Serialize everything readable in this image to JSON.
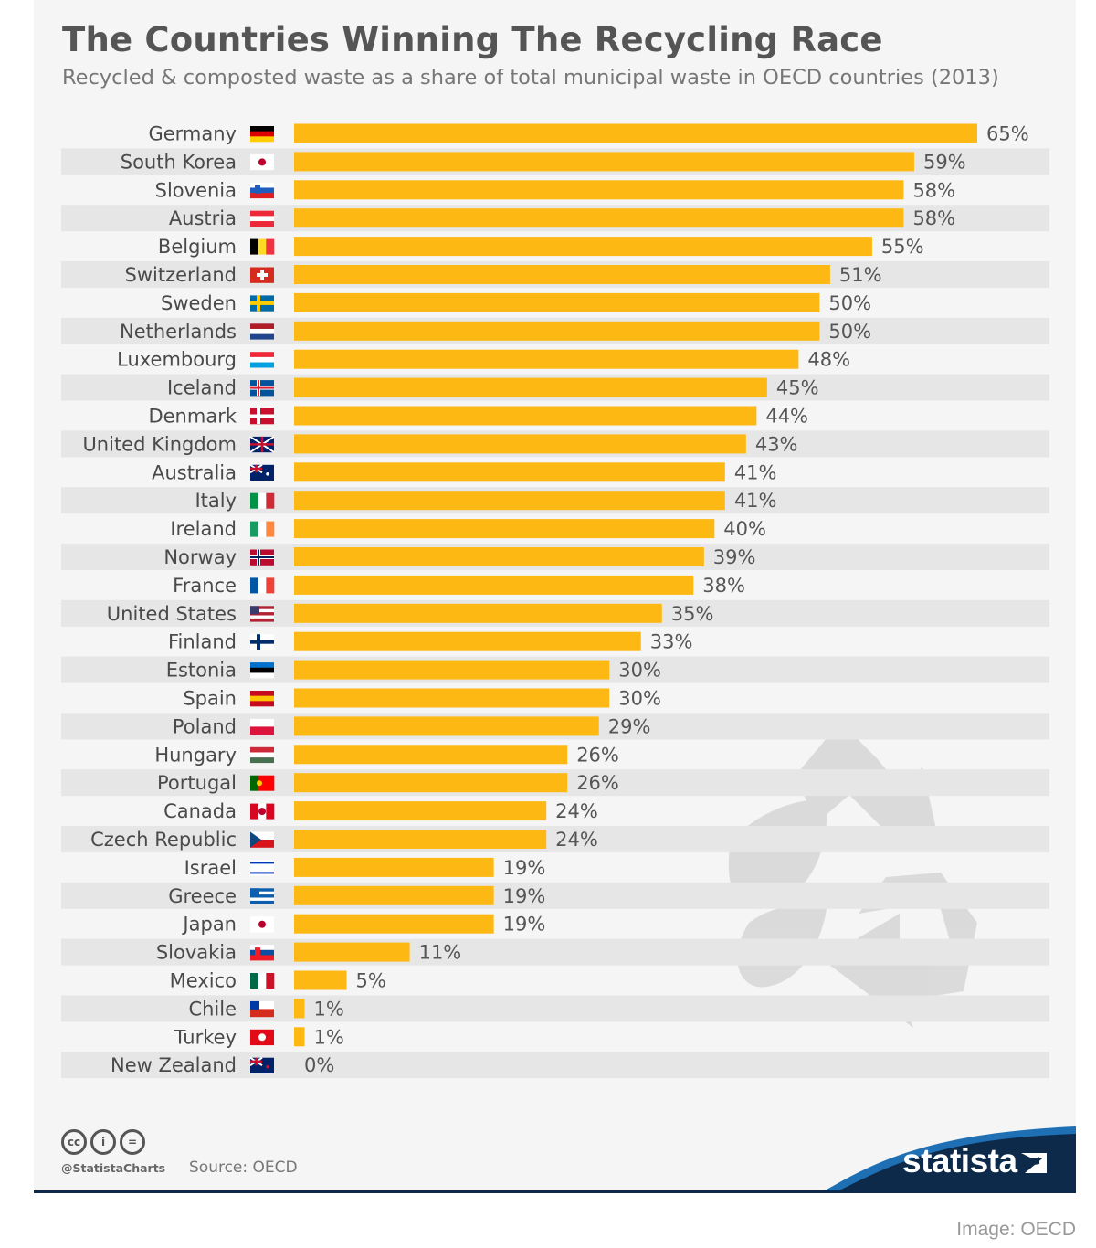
{
  "title": "The Countries Winning The Recycling Race",
  "subtitle": "Recycled & composted waste as a share of total municipal waste in OECD countries (2013)",
  "colors": {
    "bar": "#fdb813",
    "stripe": "#e6e6e6",
    "brand_blue": "#0d2a4a",
    "accent_blue": "#1f6fb5"
  },
  "chart_data": {
    "type": "bar",
    "orientation": "horizontal",
    "title": "The Countries Winning The Recycling Race",
    "subtitle": "Recycled & composted waste as a share of total municipal waste in OECD countries (2013)",
    "unit": "%",
    "xlim": [
      0,
      65
    ],
    "categories": [
      "Germany",
      "South Korea",
      "Slovenia",
      "Austria",
      "Belgium",
      "Switzerland",
      "Sweden",
      "Netherlands",
      "Luxembourg",
      "Iceland",
      "Denmark",
      "United Kingdom",
      "Australia",
      "Italy",
      "Ireland",
      "Norway",
      "France",
      "United States",
      "Finland",
      "Estonia",
      "Spain",
      "Poland",
      "Hungary",
      "Portugal",
      "Canada",
      "Czech Republic",
      "Israel",
      "Greece",
      "Japan",
      "Slovakia",
      "Mexico",
      "Chile",
      "Turkey",
      "New Zealand"
    ],
    "values": [
      65,
      59,
      58,
      58,
      55,
      51,
      50,
      50,
      48,
      45,
      44,
      43,
      41,
      41,
      40,
      39,
      38,
      35,
      33,
      30,
      30,
      29,
      26,
      26,
      24,
      24,
      19,
      19,
      19,
      11,
      5,
      1,
      1,
      0
    ],
    "value_labels": [
      "65%",
      "59%",
      "58%",
      "58%",
      "55%",
      "51%",
      "50%",
      "50%",
      "48%",
      "45%",
      "44%",
      "43%",
      "41%",
      "41%",
      "40%",
      "39%",
      "38%",
      "35%",
      "33%",
      "30%",
      "30%",
      "29%",
      "26%",
      "26%",
      "24%",
      "24%",
      "19%",
      "19%",
      "19%",
      "11%",
      "5%",
      "1%",
      "1%",
      "0%"
    ]
  },
  "footer": {
    "cc_icons": [
      "cc",
      "i",
      "="
    ],
    "handle": "@StatistaCharts",
    "source": "Source: OECD",
    "brand": "statista"
  },
  "image_credit": "Image: OECD"
}
